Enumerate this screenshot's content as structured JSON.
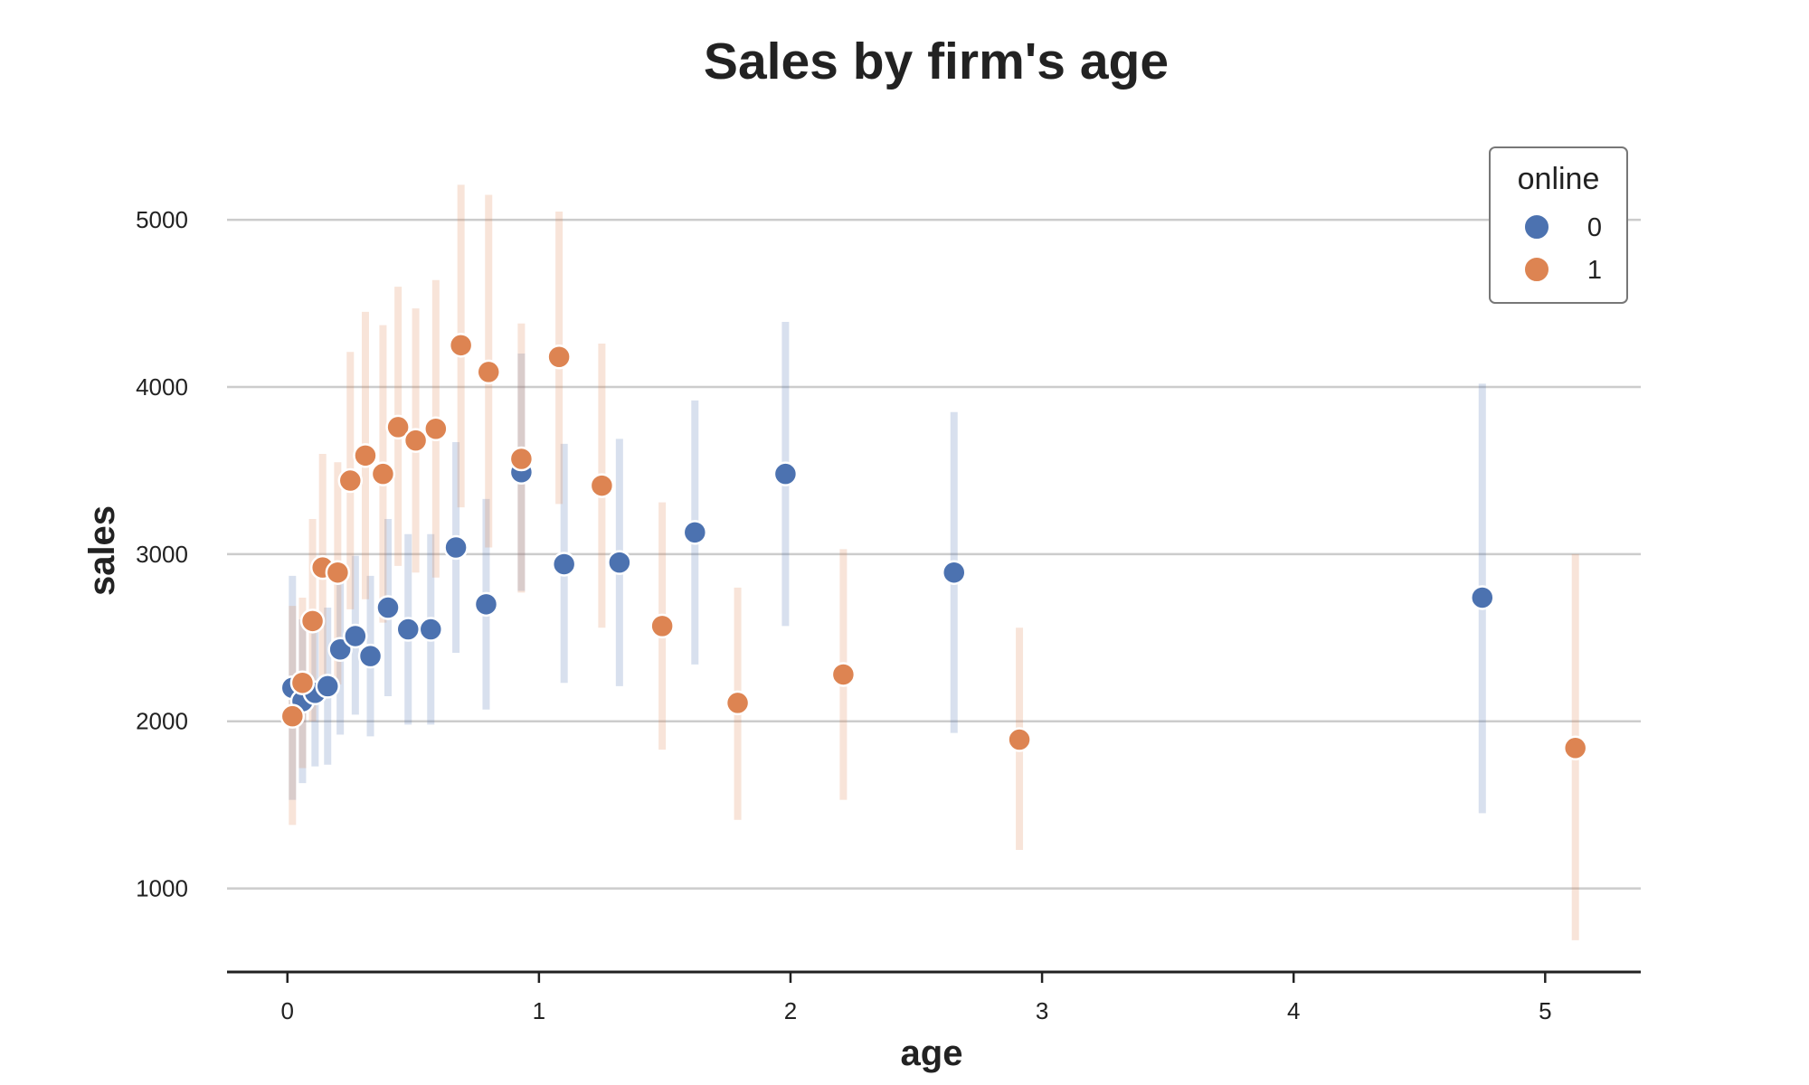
{
  "chart_data": {
    "type": "scatter",
    "title": "Sales by firm's age",
    "xlabel": "age",
    "ylabel": "sales",
    "xlim": [
      -0.24,
      5.38
    ],
    "ylim": [
      500,
      5450
    ],
    "xticks": [
      0,
      1,
      2,
      3,
      4,
      5
    ],
    "yticks": [
      1000,
      2000,
      3000,
      4000,
      5000
    ],
    "grid": "horizontal",
    "legend": {
      "title": "online",
      "placement": "top-right",
      "entries": [
        "0",
        "1"
      ]
    },
    "series": [
      {
        "name": "0",
        "color": "#4c72b0",
        "points": [
          {
            "x": 0.02,
            "y": 2200,
            "lo": 1530,
            "hi": 2870
          },
          {
            "x": 0.06,
            "y": 2120,
            "lo": 1630,
            "hi": 2610
          },
          {
            "x": 0.11,
            "y": 2170,
            "lo": 1730,
            "hi": 2610
          },
          {
            "x": 0.16,
            "y": 2210,
            "lo": 1740,
            "hi": 2680
          },
          {
            "x": 0.21,
            "y": 2430,
            "lo": 1920,
            "hi": 2940
          },
          {
            "x": 0.27,
            "y": 2510,
            "lo": 2040,
            "hi": 2990
          },
          {
            "x": 0.33,
            "y": 2390,
            "lo": 1910,
            "hi": 2870
          },
          {
            "x": 0.4,
            "y": 2680,
            "lo": 2150,
            "hi": 3210
          },
          {
            "x": 0.48,
            "y": 2550,
            "lo": 1980,
            "hi": 3120
          },
          {
            "x": 0.57,
            "y": 2550,
            "lo": 1980,
            "hi": 3120
          },
          {
            "x": 0.67,
            "y": 3040,
            "lo": 2410,
            "hi": 3670
          },
          {
            "x": 0.79,
            "y": 2700,
            "lo": 2070,
            "hi": 3330
          },
          {
            "x": 0.93,
            "y": 3490,
            "lo": 2780,
            "hi": 4200
          },
          {
            "x": 1.1,
            "y": 2940,
            "lo": 2230,
            "hi": 3660
          },
          {
            "x": 1.32,
            "y": 2950,
            "lo": 2210,
            "hi": 3690
          },
          {
            "x": 1.62,
            "y": 3130,
            "lo": 2340,
            "hi": 3920
          },
          {
            "x": 1.98,
            "y": 3480,
            "lo": 2570,
            "hi": 4390
          },
          {
            "x": 2.65,
            "y": 2890,
            "lo": 1930,
            "hi": 3850
          },
          {
            "x": 4.75,
            "y": 2740,
            "lo": 1450,
            "hi": 4020
          }
        ]
      },
      {
        "name": "1",
        "color": "#dd8452",
        "points": [
          {
            "x": 0.02,
            "y": 2030,
            "lo": 1380,
            "hi": 2690
          },
          {
            "x": 0.06,
            "y": 2230,
            "lo": 1720,
            "hi": 2740
          },
          {
            "x": 0.1,
            "y": 2600,
            "lo": 2000,
            "hi": 3210
          },
          {
            "x": 0.14,
            "y": 2920,
            "lo": 2240,
            "hi": 3600
          },
          {
            "x": 0.2,
            "y": 2890,
            "lo": 2220,
            "hi": 3550
          },
          {
            "x": 0.25,
            "y": 3440,
            "lo": 2670,
            "hi": 4210
          },
          {
            "x": 0.31,
            "y": 3590,
            "lo": 2730,
            "hi": 4450
          },
          {
            "x": 0.38,
            "y": 3480,
            "lo": 2590,
            "hi": 4370
          },
          {
            "x": 0.44,
            "y": 3760,
            "lo": 2930,
            "hi": 4600
          },
          {
            "x": 0.51,
            "y": 3680,
            "lo": 2890,
            "hi": 4470
          },
          {
            "x": 0.59,
            "y": 3750,
            "lo": 2860,
            "hi": 4640
          },
          {
            "x": 0.69,
            "y": 4250,
            "lo": 3280,
            "hi": 5210
          },
          {
            "x": 0.8,
            "y": 4090,
            "lo": 3040,
            "hi": 5150
          },
          {
            "x": 0.93,
            "y": 3570,
            "lo": 2770,
            "hi": 4380
          },
          {
            "x": 1.08,
            "y": 4180,
            "lo": 3300,
            "hi": 5050
          },
          {
            "x": 1.25,
            "y": 3410,
            "lo": 2560,
            "hi": 4260
          },
          {
            "x": 1.49,
            "y": 2570,
            "lo": 1830,
            "hi": 3310
          },
          {
            "x": 1.79,
            "y": 2110,
            "lo": 1410,
            "hi": 2800
          },
          {
            "x": 2.21,
            "y": 2280,
            "lo": 1530,
            "hi": 3030
          },
          {
            "x": 2.91,
            "y": 1890,
            "lo": 1230,
            "hi": 2560
          },
          {
            "x": 5.12,
            "y": 1840,
            "lo": 690,
            "hi": 3000
          }
        ]
      }
    ]
  }
}
